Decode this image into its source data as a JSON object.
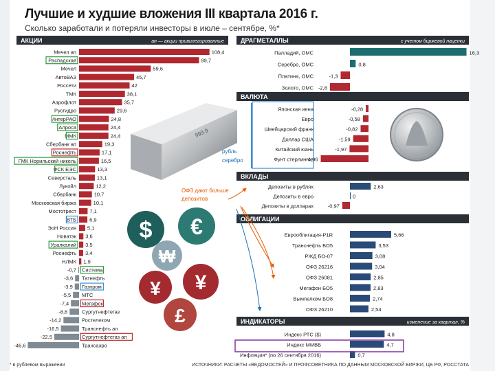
{
  "title": "Лучшие и худшие вложения III квартала 2016 г.",
  "subtitle": "Сколько заработали и потеряли инвесторы в июле – сентябре, %*",
  "colors": {
    "red": "#b02830",
    "teal": "#1c6d70",
    "navy": "#2a4b78",
    "grey": "#7f8a93",
    "green": "#2e9b3e",
    "redbox": "#c2272d",
    "bluebox": "#3b8ed0",
    "purple": "#8e3da8",
    "orange": "#e65c00"
  },
  "chart_data": [
    {
      "type": "bar",
      "section": "АКЦИИ",
      "note": "ап — акции привилегированные",
      "orientation": "horizontal",
      "categories": [
        "Мечел ап",
        "Распадская",
        "Мечел",
        "АвтоВАЗ",
        "Россети",
        "ТМК",
        "Аэрофлот",
        "Русгидро",
        "ИнтерРАО",
        "Алроса",
        "ММК",
        "Сбербанк ап",
        "Роснефть",
        "ГМК Норильский никель",
        "ФСК ЕЭС",
        "Северсталь",
        "Лукойл",
        "Сбербанк",
        "Московская биржа",
        "Мостотрест",
        "ВТБ",
        "ЭоН Россия",
        "Новатэк",
        "Уралкалий",
        "Роснефть ",
        "НЛМК",
        "Система",
        "Татнефть",
        "Газпром",
        "МТС",
        "Мегафон",
        "Сургутнефтегаз",
        "Ростелеком",
        "Транснефть ап",
        "Сургутнефтегаз ап",
        "Трансаэро"
      ],
      "values": [
        108.4,
        99.7,
        59.6,
        45.7,
        42,
        38.1,
        35.7,
        29.6,
        24.8,
        24.4,
        24.4,
        19.3,
        17.1,
        16.5,
        13.3,
        13.1,
        12.2,
        10.7,
        10.1,
        7.1,
        6.9,
        5.1,
        3.6,
        3.5,
        3.4,
        1.9,
        -0.7,
        -3.6,
        -3.9,
        -5.5,
        -7.4,
        -8.6,
        -14.2,
        -16.5,
        -22.5,
        -46.6
      ],
      "value_labels": [
        "108,4",
        "99,7",
        "59,6",
        "45,7",
        "42",
        "38,1",
        "35,7",
        "29,6",
        "24,8",
        "24,4",
        "24,4",
        "19,3",
        "17,1",
        "16,5",
        "13,3",
        "13,1",
        "12,2",
        "10,7",
        "10,1",
        "7,1",
        "6,9",
        "5,1",
        "3,6",
        "3,5",
        "3,4",
        "1,9",
        "-0,7",
        "-3,6",
        "-3,9",
        "-5,5",
        "-7,4",
        "-8,6",
        "-14,2",
        "-16,5",
        "-22,5",
        "-46,6"
      ],
      "boxed": {
        "1": "green",
        "8": "green",
        "9": "green",
        "10": "green",
        "12": "redbox",
        "13": "green",
        "14": "green",
        "20": "bluebox",
        "23": "green",
        "26": "green",
        "28": "bluebox",
        "30": "redbox",
        "34": "redbox"
      }
    },
    {
      "type": "bar",
      "section": "ДРАГМЕТАЛЛЫ",
      "note": "с учетом биржевой наценки",
      "orientation": "horizontal",
      "categories": [
        "Палладий, ОМС",
        "Серебро, ОМС",
        "Платина, ОМС",
        "Золото, ОМС"
      ],
      "values": [
        16.3,
        0.8,
        -1.3,
        -2.8
      ],
      "value_labels": [
        "16,3",
        "0,8",
        "-1,3",
        "-2,8"
      ]
    },
    {
      "type": "bar",
      "section": "ВАЛЮТА",
      "orientation": "horizontal",
      "categories": [
        "Японская иена",
        "Евро",
        "Швейцарский франк",
        "Доллар США",
        "Китайский юань",
        "Фунт стерлингов"
      ],
      "values": [
        -0.28,
        -0.58,
        -0.82,
        -1.59,
        -1.97,
        -4.96
      ],
      "value_labels": [
        "-0,28",
        "-0,58",
        "-0,82",
        "-1,59",
        "-1,97",
        "-4,96"
      ]
    },
    {
      "type": "bar",
      "section": "ВКЛАДЫ",
      "orientation": "horizontal",
      "categories": [
        "Депозиты в рублях",
        "Депозиты в евро",
        "Депозиты в долларах"
      ],
      "values": [
        2.63,
        0,
        -0.97
      ],
      "value_labels": [
        "2,63",
        "0",
        "-0,97"
      ]
    },
    {
      "type": "bar",
      "section": "ОБЛИГАЦИИ",
      "orientation": "horizontal",
      "categories": [
        "Еврооблигация-P1R",
        "Транснефть БО5",
        "РЖД БО-07",
        "ОФЗ 26216",
        "ОФЗ 26081",
        "Мегафон БО5",
        "Вымпелком БО8",
        "ОФЗ 26210"
      ],
      "values": [
        5.66,
        3.53,
        3.08,
        3.04,
        2.85,
        2.83,
        2.74,
        2.54
      ],
      "value_labels": [
        "5,66",
        "3,53",
        "3,08",
        "3,04",
        "2,85",
        "2,83",
        "2,74",
        "2,54"
      ]
    },
    {
      "type": "bar",
      "section": "ИНДИКАТОРЫ",
      "note": "изменение за квартал, %",
      "orientation": "horizontal",
      "categories": [
        "Индекс РТС ($)",
        "Индекс ММВБ",
        "Инфляция* (по 26 сентября 2016)"
      ],
      "values": [
        4.8,
        4.7,
        0.7
      ],
      "value_labels": [
        "4,8",
        "4,7",
        "0,7"
      ]
    }
  ],
  "annotations": {
    "rub_silver_1": "рубль",
    "rub_silver_2": "серебро",
    "ofz_1": "ОФЗ дают больше",
    "ofz_2": "депозитов"
  },
  "footer_left": "* в рублевом выражении",
  "footer_right": "ИСТОЧНИКИ: РАСЧЕТЫ «ВЕДОМОСТЕЙ» И ПРОФСОВЕТНИКА ПО ДАННЫМ МОСКОВСКОЙ БИРЖИ, ЦБ РФ, РОССТАТА",
  "coins": {
    "dollar": "$",
    "euro": "€",
    "won": "₩",
    "yen1": "¥",
    "yen2": "¥",
    "pound": "£"
  },
  "icons": {
    "bar": "silver-bar-icon",
    "coin": "silver-coin-icon"
  }
}
